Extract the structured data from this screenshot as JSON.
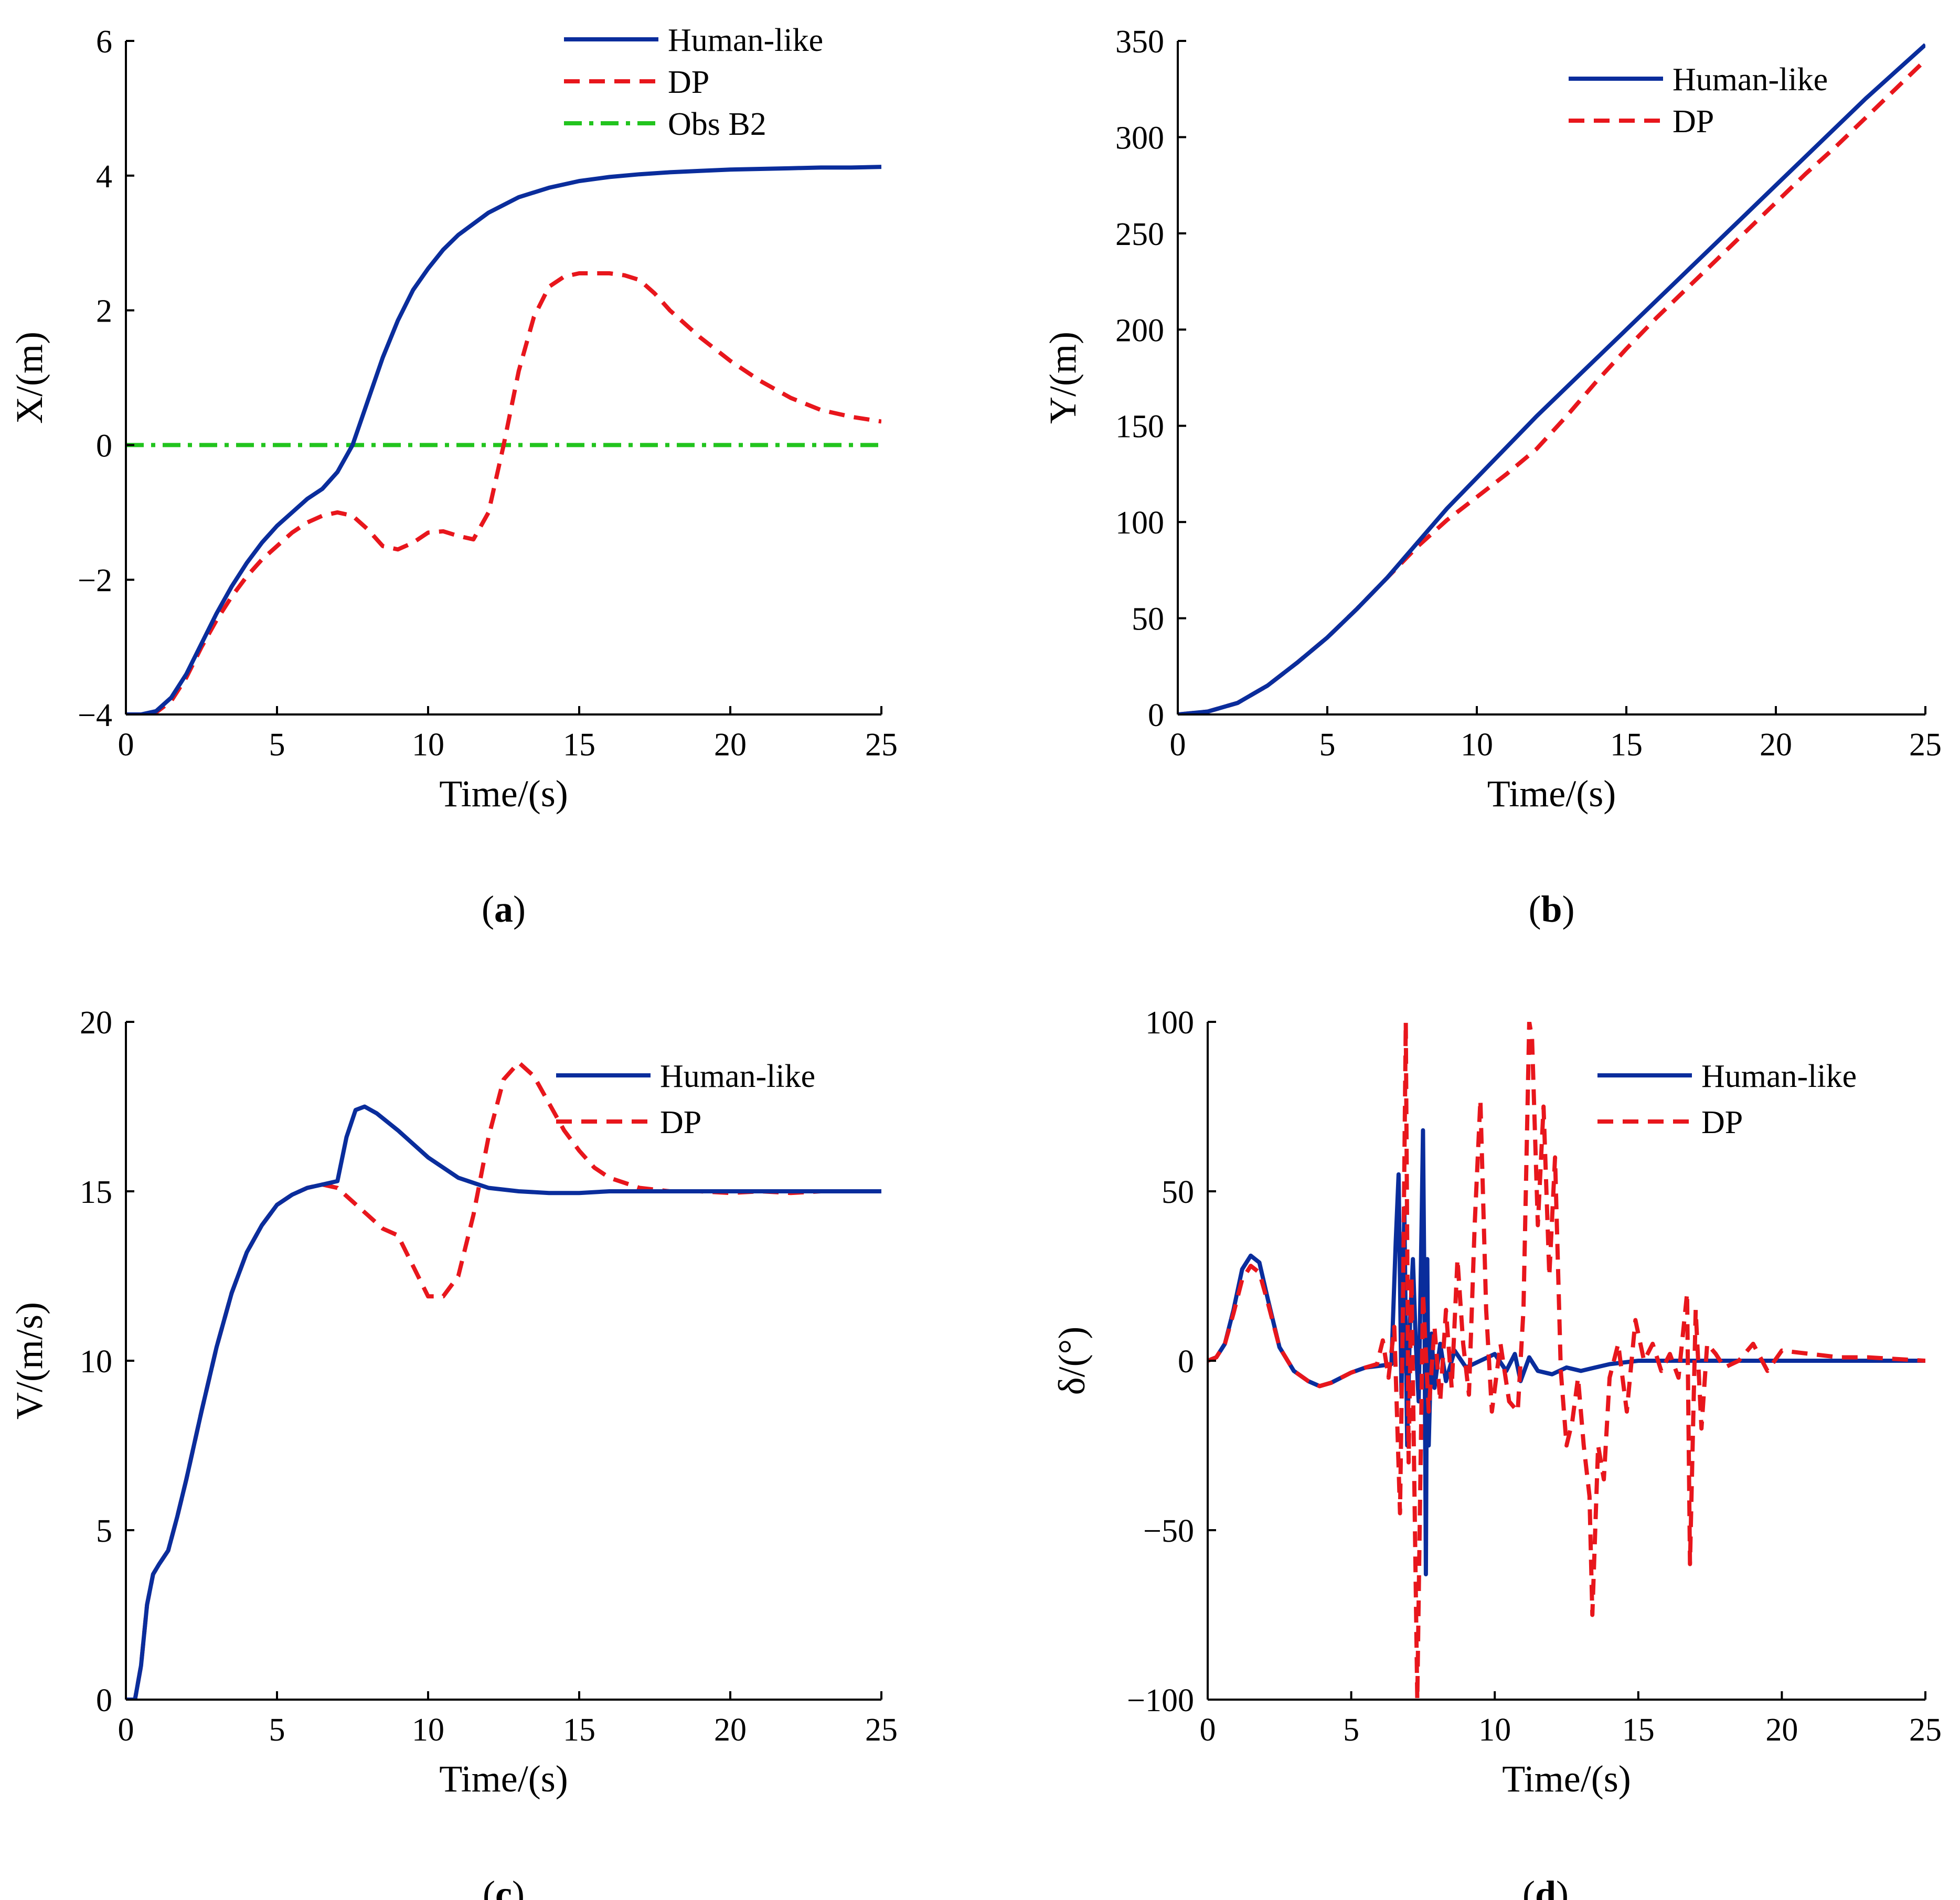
{
  "chart_data": [
    {
      "type": "line",
      "panel_label": "a",
      "xlabel": "Time/(s)",
      "ylabel": "X/(m)",
      "xlim": [
        0,
        25
      ],
      "ylim": [
        -4,
        6
      ],
      "xticks": [
        0,
        5,
        10,
        15,
        20,
        25
      ],
      "yticks": [
        -4,
        -2,
        0,
        2,
        4,
        6
      ],
      "ytick_labels": [
        "−4",
        "−2",
        "0",
        "2",
        "4",
        "6"
      ],
      "legend_position": "top-right",
      "series": [
        {
          "name": "Human-like",
          "color": "#0a2d9c",
          "style": "solid",
          "x": [
            0,
            0.5,
            1,
            1.5,
            2,
            2.5,
            3,
            3.5,
            4,
            4.5,
            5,
            5.5,
            6,
            6.5,
            7,
            7.5,
            8,
            8.5,
            9,
            9.5,
            10,
            10.5,
            11,
            12,
            13,
            14,
            15,
            16,
            17,
            18,
            19,
            20,
            21,
            22,
            23,
            24,
            25
          ],
          "y": [
            -4,
            -4,
            -3.95,
            -3.75,
            -3.4,
            -2.95,
            -2.5,
            -2.1,
            -1.75,
            -1.45,
            -1.2,
            -1.0,
            -0.8,
            -0.65,
            -0.4,
            0.0,
            0.65,
            1.3,
            1.85,
            2.3,
            2.62,
            2.9,
            3.12,
            3.45,
            3.68,
            3.82,
            3.92,
            3.98,
            4.02,
            4.05,
            4.07,
            4.09,
            4.1,
            4.11,
            4.12,
            4.12,
            4.13
          ]
        },
        {
          "name": "DP",
          "color": "#e8161c",
          "style": "dashed",
          "x": [
            0,
            0.5,
            1,
            1.5,
            2,
            2.5,
            3,
            3.5,
            4,
            4.5,
            5,
            5.5,
            6,
            6.5,
            7,
            7.5,
            8,
            8.5,
            9,
            9.5,
            10,
            10.5,
            11,
            11.5,
            12,
            12.5,
            13,
            13.5,
            14,
            14.5,
            15,
            15.5,
            16,
            16.5,
            17,
            17.5,
            18,
            19,
            20,
            21,
            22,
            23,
            24,
            25
          ],
          "y": [
            -4,
            -4,
            -3.97,
            -3.8,
            -3.45,
            -3.0,
            -2.6,
            -2.25,
            -1.95,
            -1.7,
            -1.5,
            -1.3,
            -1.15,
            -1.05,
            -1.0,
            -1.05,
            -1.25,
            -1.5,
            -1.55,
            -1.45,
            -1.3,
            -1.28,
            -1.35,
            -1.4,
            -1.0,
            0.0,
            1.1,
            1.9,
            2.35,
            2.5,
            2.55,
            2.55,
            2.55,
            2.52,
            2.45,
            2.25,
            2.0,
            1.6,
            1.25,
            0.95,
            0.7,
            0.52,
            0.42,
            0.35
          ]
        },
        {
          "name": "Obs B2",
          "color": "#22c41e",
          "style": "dashdot",
          "x": [
            0,
            25
          ],
          "y": [
            0,
            0
          ]
        }
      ]
    },
    {
      "type": "line",
      "panel_label": "b",
      "xlabel": "Time/(s)",
      "ylabel": "Y/(m)",
      "xlim": [
        0,
        25
      ],
      "ylim": [
        0,
        350
      ],
      "xticks": [
        0,
        5,
        10,
        15,
        20,
        25
      ],
      "yticks": [
        0,
        50,
        100,
        150,
        200,
        250,
        300,
        350
      ],
      "ytick_labels": [
        "0",
        "50",
        "100",
        "150",
        "200",
        "250",
        "300",
        "350"
      ],
      "legend_position": "top-right",
      "series": [
        {
          "name": "Human-like",
          "color": "#0a2d9c",
          "style": "solid",
          "x": [
            0,
            1,
            2,
            3,
            4,
            5,
            6,
            7,
            8,
            9,
            10,
            11,
            12,
            13,
            14,
            15,
            16,
            17,
            18,
            19,
            20,
            21,
            22,
            23,
            24,
            25
          ],
          "y": [
            0,
            1.5,
            6,
            15,
            27,
            40,
            55,
            71,
            89,
            107,
            123,
            139,
            155,
            170,
            185,
            200,
            215,
            230,
            245,
            260,
            275,
            290,
            305,
            320,
            334,
            348
          ]
        },
        {
          "name": "DP",
          "color": "#e8161c",
          "style": "dashed",
          "x": [
            0,
            1,
            2,
            3,
            4,
            5,
            6,
            7,
            8,
            9,
            10,
            11,
            12,
            13,
            14,
            15,
            16,
            17,
            18,
            19,
            20,
            21,
            22,
            23,
            24,
            25
          ],
          "y": [
            0,
            1.5,
            6,
            15,
            27,
            40,
            55,
            71,
            87,
            101,
            113,
            125,
            138,
            155,
            173,
            190,
            206,
            221,
            236,
            251,
            266,
            281,
            295,
            310,
            325,
            340
          ]
        }
      ]
    },
    {
      "type": "line",
      "panel_label": "c",
      "xlabel": "Time/(s)",
      "ylabel": "V/(m/s)",
      "xlim": [
        0,
        25
      ],
      "ylim": [
        0,
        20
      ],
      "xticks": [
        0,
        5,
        10,
        15,
        20,
        25
      ],
      "yticks": [
        0,
        5,
        10,
        15,
        20
      ],
      "ytick_labels": [
        "0",
        "5",
        "10",
        "15",
        "20"
      ],
      "legend_position": "top-right",
      "series": [
        {
          "name": "Human-like",
          "color": "#0a2d9c",
          "style": "solid",
          "x": [
            0,
            0.3,
            0.5,
            0.7,
            0.9,
            1.1,
            1.4,
            1.7,
            2,
            2.5,
            3,
            3.5,
            4,
            4.5,
            5,
            5.5,
            6,
            6.5,
            7,
            7.3,
            7.6,
            7.9,
            8.3,
            9,
            10,
            11,
            12,
            13,
            14,
            15,
            16,
            18,
            20,
            25
          ],
          "y": [
            0,
            0,
            1.0,
            2.8,
            3.7,
            4.0,
            4.4,
            5.4,
            6.5,
            8.5,
            10.4,
            12.0,
            13.2,
            14.0,
            14.6,
            14.9,
            15.1,
            15.2,
            15.3,
            16.6,
            17.4,
            17.5,
            17.3,
            16.8,
            16.0,
            15.4,
            15.1,
            15.0,
            14.95,
            14.95,
            15.0,
            15.0,
            15.0,
            15.0
          ]
        },
        {
          "name": "DP",
          "color": "#e8161c",
          "style": "dashed",
          "x": [
            0,
            0.3,
            0.5,
            0.7,
            0.9,
            1.1,
            1.4,
            1.7,
            2,
            2.5,
            3,
            3.5,
            4,
            4.5,
            5,
            5.5,
            6,
            6.5,
            7,
            7.5,
            8,
            8.5,
            9,
            9.5,
            10,
            10.5,
            11,
            11.5,
            12,
            12.5,
            13,
            13.5,
            14,
            14.5,
            15,
            15.5,
            16,
            17,
            18,
            19,
            20,
            21,
            22,
            23,
            25
          ],
          "y": [
            0,
            0,
            1.0,
            2.8,
            3.7,
            4.0,
            4.4,
            5.4,
            6.5,
            8.5,
            10.4,
            12.0,
            13.2,
            14.0,
            14.6,
            14.9,
            15.1,
            15.2,
            15.1,
            14.7,
            14.3,
            13.9,
            13.7,
            12.8,
            11.9,
            11.9,
            12.5,
            14.3,
            16.6,
            18.3,
            18.8,
            18.4,
            17.6,
            16.8,
            16.2,
            15.7,
            15.4,
            15.1,
            15.0,
            15.0,
            14.95,
            15.0,
            14.95,
            15.0,
            15.0
          ]
        }
      ]
    },
    {
      "type": "line",
      "panel_label": "d",
      "xlabel": "Time/(s)",
      "ylabel": "δ/(°)",
      "xlim": [
        0,
        25
      ],
      "ylim": [
        -100,
        100
      ],
      "xticks": [
        0,
        5,
        10,
        15,
        20,
        25
      ],
      "yticks": [
        -100,
        -50,
        0,
        50,
        100
      ],
      "ytick_labels": [
        "−100",
        "−50",
        "0",
        "50",
        "100"
      ],
      "legend_position": "top-right",
      "series": [
        {
          "name": "Human-like",
          "color": "#0a2d9c",
          "style": "solid",
          "x": [
            0,
            0.3,
            0.6,
            0.9,
            1.2,
            1.5,
            1.8,
            2.1,
            2.5,
            3,
            3.5,
            3.9,
            4.3,
            5,
            5.5,
            6,
            6.4,
            6.55,
            6.65,
            6.75,
            6.85,
            6.95,
            7.05,
            7.15,
            7.25,
            7.35,
            7.45,
            7.5,
            7.55,
            7.6,
            7.65,
            7.7,
            7.8,
            7.9,
            8.1,
            8.3,
            8.6,
            9,
            9.5,
            10,
            10.4,
            10.7,
            10.9,
            11.2,
            11.5,
            12,
            12.5,
            13,
            13.5,
            14,
            15,
            16,
            17,
            18,
            19,
            20,
            21,
            22,
            23,
            24,
            25
          ],
          "y": [
            0,
            1,
            5,
            15,
            27,
            31,
            29,
            18,
            4,
            -3,
            -6,
            -7.5,
            -6.5,
            -3.5,
            -2,
            -1.5,
            -1,
            35,
            55,
            -10,
            45,
            -25,
            12,
            30,
            5,
            -12,
            40,
            68,
            20,
            -63,
            30,
            -25,
            8,
            -8,
            5,
            -6,
            3,
            -2,
            0,
            2,
            -3,
            2,
            -6,
            1,
            -3,
            -4,
            -2,
            -3,
            -2,
            -1,
            0,
            0,
            0,
            0,
            0,
            0,
            0,
            0,
            0,
            0,
            0
          ]
        },
        {
          "name": "DP",
          "color": "#e8161c",
          "style": "dashed",
          "x": [
            0,
            0.3,
            0.6,
            0.9,
            1.2,
            1.5,
            1.8,
            2.1,
            2.5,
            3,
            3.5,
            3.9,
            4.3,
            5,
            5.5,
            5.9,
            6.1,
            6.3,
            6.5,
            6.7,
            6.8,
            6.9,
            7.0,
            7.1,
            7.3,
            7.5,
            7.7,
            7.9,
            8.1,
            8.3,
            8.5,
            8.7,
            8.9,
            9.1,
            9.3,
            9.5,
            9.7,
            9.9,
            10.2,
            10.5,
            10.8,
            11.0,
            11.2,
            11.3,
            11.5,
            11.7,
            11.9,
            12.1,
            12.3,
            12.5,
            12.7,
            12.9,
            13.1,
            13.3,
            13.4,
            13.6,
            13.8,
            14.0,
            14.3,
            14.6,
            14.9,
            15.2,
            15.5,
            15.8,
            16.1,
            16.4,
            16.7,
            16.8,
            17.0,
            17.2,
            17.4,
            17.7,
            18.0,
            18.5,
            19,
            19.5,
            20,
            21,
            22,
            23,
            24,
            25
          ],
          "y": [
            0,
            1,
            5,
            14,
            24,
            28,
            26,
            17,
            4,
            -3,
            -6,
            -7.5,
            -6.5,
            -3.5,
            -2,
            -1,
            6,
            -5,
            10,
            -45,
            15,
            100,
            -30,
            25,
            -100,
            20,
            -15,
            10,
            -12,
            15,
            -8,
            30,
            5,
            -10,
            40,
            77,
            15,
            -15,
            5,
            -12,
            -15,
            15,
            100,
            95,
            40,
            75,
            25,
            60,
            -3,
            -25,
            -18,
            -5,
            -25,
            -40,
            -75,
            -25,
            -35,
            -5,
            5,
            -15,
            12,
            0,
            5,
            -3,
            2,
            -5,
            20,
            -60,
            15,
            -20,
            5,
            2,
            -2,
            0,
            5,
            -3,
            3,
            2,
            1,
            1,
            0.5,
            0
          ]
        }
      ]
    }
  ]
}
